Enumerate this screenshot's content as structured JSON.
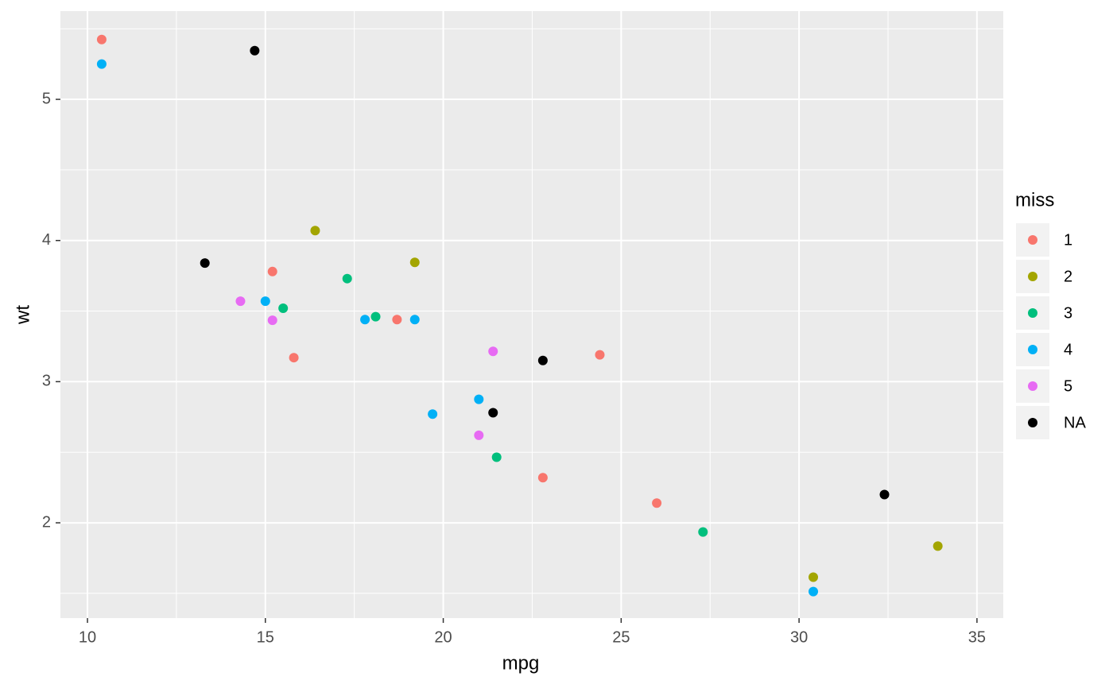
{
  "chart_data": {
    "type": "scatter",
    "x_label": "mpg",
    "y_label": "wt",
    "legend_title": "miss",
    "legend_position": "right",
    "grid": true,
    "xlim": [
      9.24,
      35.74
    ],
    "ylim": [
      1.325,
      5.625
    ],
    "xticks": [
      10,
      15,
      20,
      25,
      30,
      35
    ],
    "yticks": [
      2,
      3,
      4,
      5
    ],
    "series": [
      {
        "name": "1",
        "color": "#F8766D",
        "x": [
          10.4,
          15.2,
          15.8,
          18.7,
          24.4,
          22.8,
          26.0
        ],
        "values": [
          5.424,
          3.78,
          3.17,
          3.44,
          3.19,
          2.32,
          2.14
        ]
      },
      {
        "name": "2",
        "color": "#A3A500",
        "x": [
          16.4,
          19.2,
          30.4,
          33.9
        ],
        "values": [
          4.07,
          3.845,
          1.615,
          1.835
        ]
      },
      {
        "name": "3",
        "color": "#00BF7D",
        "x": [
          17.3,
          15.5,
          18.1,
          21.5,
          27.3
        ],
        "values": [
          3.73,
          3.52,
          3.46,
          2.465,
          1.935
        ]
      },
      {
        "name": "4",
        "color": "#00B0F6",
        "x": [
          10.4,
          15.0,
          17.8,
          19.2,
          19.7,
          21.0,
          30.4
        ],
        "values": [
          5.25,
          3.57,
          3.44,
          3.44,
          2.77,
          2.875,
          1.513
        ]
      },
      {
        "name": "5",
        "color": "#E76BF3",
        "x": [
          14.3,
          15.2,
          21.4,
          21.0
        ],
        "values": [
          3.57,
          3.435,
          3.215,
          2.62
        ]
      },
      {
        "name": "NA",
        "color": "#000000",
        "x": [
          14.7,
          13.3,
          22.8,
          21.4,
          32.4
        ],
        "values": [
          5.345,
          3.84,
          3.15,
          2.78,
          2.2
        ]
      }
    ]
  }
}
